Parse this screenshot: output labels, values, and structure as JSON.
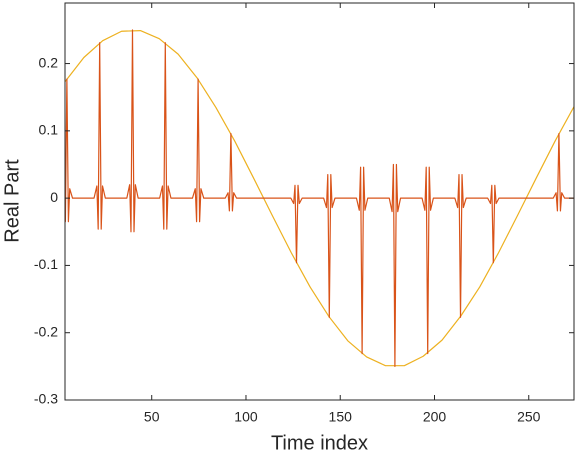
{
  "chart_data": {
    "type": "line",
    "xlabel": "Time index",
    "ylabel": "Real Part",
    "xlim": [
      4,
      274
    ],
    "ylim": [
      -0.3,
      0.29
    ],
    "xticks": [
      50,
      100,
      150,
      200,
      250
    ],
    "yticks": [
      -0.3,
      -0.2,
      -0.1,
      0,
      0.1,
      0.2
    ],
    "grid": false,
    "box": true,
    "series": [
      {
        "color": "#EDB120",
        "x": [
          4,
          14,
          24,
          34,
          44,
          54,
          64,
          74,
          84,
          94,
          104,
          114,
          124,
          134,
          144,
          154,
          164,
          174,
          184,
          194,
          204,
          214,
          224,
          234,
          244,
          254,
          264,
          274
        ],
        "values": [
          0.173,
          0.209,
          0.234,
          0.248,
          0.249,
          0.237,
          0.214,
          0.179,
          0.135,
          0.085,
          0.03,
          -0.026,
          -0.081,
          -0.132,
          -0.176,
          -0.212,
          -0.236,
          -0.249,
          -0.249,
          -0.235,
          -0.211,
          -0.175,
          -0.132,
          -0.081,
          -0.026,
          0.03,
          0.085,
          0.136
        ]
      },
      {
        "color": "#D95319",
        "x": [
          2,
          3.5,
          4.2,
          5,
          5.8,
          6.5,
          8,
          19.4,
          20.9,
          21.6,
          22.4,
          23.2,
          23.9,
          25.4,
          36.8,
          38.3,
          39,
          39.8,
          40.6,
          41.3,
          42.8,
          54.2,
          55.7,
          56.4,
          57.2,
          58,
          58.7,
          60.2,
          71.6,
          73.1,
          73.8,
          74.6,
          75.4,
          76.1,
          77.6,
          89,
          90.5,
          91.2,
          92,
          92.8,
          93.5,
          95,
          123.8,
          125.3,
          126,
          126.8,
          127.6,
          128.3,
          129.8,
          141.2,
          142.7,
          143.4,
          144.2,
          145,
          145.7,
          147.2,
          158.6,
          160.1,
          160.8,
          161.6,
          162.4,
          163.1,
          164.6,
          176,
          177.5,
          178.2,
          179,
          179.8,
          180.5,
          182,
          193.4,
          194.9,
          195.6,
          196.4,
          197.2,
          197.9,
          199.4,
          210.8,
          212.3,
          213,
          213.8,
          214.6,
          215.3,
          216.8,
          228.2,
          229.7,
          230.4,
          231.2,
          232,
          232.7,
          234.2,
          263,
          264.5,
          265.2,
          266,
          266.8,
          267.5,
          269,
          274
        ],
        "values": [
          0,
          0.014,
          -0.035,
          0.177,
          -0.035,
          0.014,
          0,
          0,
          0.018,
          -0.046,
          0.231,
          -0.046,
          0.018,
          0,
          0,
          0.02,
          -0.05,
          0.25,
          -0.05,
          0.02,
          0,
          0,
          0.018,
          -0.046,
          0.231,
          -0.046,
          0.018,
          0,
          0,
          0.014,
          -0.035,
          0.177,
          -0.035,
          0.014,
          0,
          0,
          0.008,
          -0.019,
          0.096,
          -0.019,
          0.008,
          0,
          0,
          -0.008,
          0.019,
          -0.096,
          0.019,
          -0.008,
          0,
          0,
          -0.014,
          0.035,
          -0.177,
          0.035,
          -0.014,
          0,
          0,
          -0.018,
          0.046,
          -0.231,
          0.046,
          -0.018,
          0,
          0,
          -0.02,
          0.05,
          -0.25,
          0.05,
          -0.02,
          0,
          0,
          -0.018,
          0.046,
          -0.231,
          0.046,
          -0.018,
          0,
          0,
          -0.014,
          0.035,
          -0.177,
          0.035,
          -0.014,
          0,
          0,
          -0.008,
          0.019,
          -0.096,
          0.019,
          -0.008,
          0,
          0,
          0.008,
          -0.019,
          0.096,
          -0.019,
          0.008,
          0,
          0
        ]
      }
    ]
  }
}
